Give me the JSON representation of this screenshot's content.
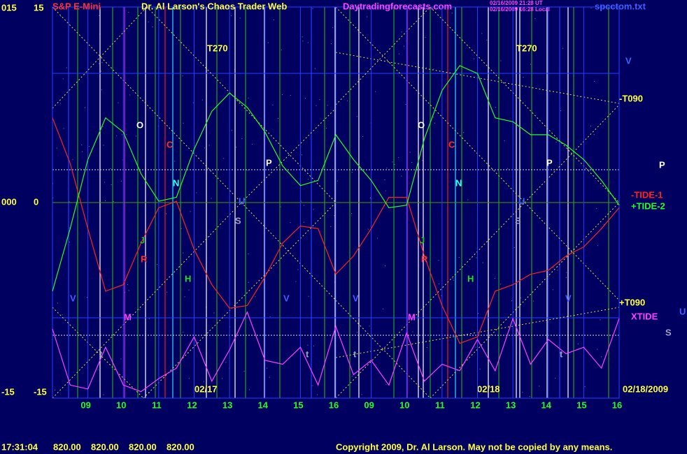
{
  "chart_data": {
    "type": "line",
    "title": "Dr. Al Larson's Chaos Trader Web",
    "instrument": "S&P E-Mini",
    "website": "Daytradingforecasts.com",
    "timestamps": [
      "02/16/2009 21:28 UT",
      "02/16/2009 16:28 Local"
    ],
    "file": "spcctom.txt",
    "ylim": [
      -15,
      15
    ],
    "yticks": [
      15,
      0,
      -15
    ],
    "yticks_left": [
      {
        "value": 15,
        "label": "015"
      },
      {
        "value": 0,
        "label": "000"
      },
      -15
    ],
    "xlim": [
      0,
      16
    ],
    "xticks": [
      {
        "value": 1,
        "label": "09"
      },
      {
        "value": 2,
        "label": "10"
      },
      {
        "value": 3,
        "label": "11"
      },
      {
        "value": 4,
        "label": "12"
      },
      {
        "value": 5,
        "label": "13"
      },
      {
        "value": 6,
        "label": "14"
      },
      {
        "value": 7,
        "label": "15"
      },
      {
        "value": 8,
        "label": "16"
      },
      {
        "value": 9,
        "label": "09"
      },
      {
        "value": 10,
        "label": "10"
      },
      {
        "value": 11,
        "label": "11"
      },
      {
        "value": 12,
        "label": "12"
      },
      {
        "value": 13,
        "label": "13"
      },
      {
        "value": 14,
        "label": "14"
      },
      {
        "value": 15,
        "label": "15"
      },
      {
        "value": 16,
        "label": "16"
      }
    ],
    "date_labels": [
      "02/17",
      "02/18",
      "02/18/2009"
    ],
    "x": [
      0,
      0.5,
      1,
      1.5,
      2,
      2.5,
      3,
      3.5,
      4,
      4.5,
      5,
      5.5,
      6,
      6.5,
      7,
      7.5,
      8,
      8.5,
      9,
      9.5,
      10,
      10.5,
      11,
      11.5,
      12,
      12.5,
      13,
      13.5,
      14,
      14.5,
      15,
      15.5,
      16
    ],
    "series": [
      {
        "name": "-TIDE-1",
        "color": "#ff2020",
        "values": [
          6.5,
          3.0,
          -2.0,
          -6.8,
          -6.3,
          -3.1,
          -0.4,
          0.1,
          -3.6,
          -6.3,
          -8.1,
          -7.9,
          -5.7,
          -3.1,
          -1.8,
          -2.0,
          -5.5,
          -4.1,
          -2.0,
          0.4,
          0.4,
          -4.1,
          -7.9,
          -10.8,
          -10.3,
          -6.8,
          -6.3,
          -5.5,
          -5.2,
          -4.1,
          -3.4,
          -2.0,
          -0.4
        ]
      },
      {
        "name": "+TIDE-2",
        "color": "#20ff20",
        "values": [
          -6.8,
          -2.0,
          3.3,
          6.5,
          5.4,
          2.2,
          0.1,
          0.4,
          4.1,
          7.0,
          8.4,
          7.3,
          5.4,
          2.8,
          1.3,
          1.7,
          5.2,
          3.3,
          1.7,
          -0.4,
          -0.2,
          4.9,
          8.6,
          10.5,
          9.9,
          6.5,
          6.2,
          5.2,
          5.2,
          4.4,
          3.3,
          1.7,
          -0.2
        ]
      },
      {
        "name": "XTIDE",
        "color": "#ff40ff",
        "values": [
          -9.7,
          -14.0,
          -14.3,
          -11.1,
          -14.0,
          -14.5,
          -13.5,
          -12.7,
          -10.3,
          -13.7,
          -11.3,
          -8.4,
          -12.1,
          -12.4,
          -11.1,
          -14.0,
          -9.5,
          -13.2,
          -12.1,
          -14.0,
          -10.0,
          -13.7,
          -12.4,
          -12.9,
          -10.5,
          -12.9,
          -8.9,
          -12.4,
          -10.5,
          -11.6,
          -11.1,
          -12.7,
          -8.9
        ]
      }
    ],
    "trend_labels": [
      "-T090",
      "+T090"
    ],
    "annotations": [
      {
        "text": "T270",
        "color": "#ffff40"
      },
      {
        "text": "T270",
        "color": "#ffff40"
      },
      {
        "text": "O",
        "color": "#ffffff"
      },
      {
        "text": "O",
        "color": "#ffffff"
      },
      {
        "text": "C",
        "color": "#ff3030"
      },
      {
        "text": "C",
        "color": "#ff3030"
      },
      {
        "text": "P",
        "color": "#ffffff"
      },
      {
        "text": "P",
        "color": "#ffffff"
      },
      {
        "text": "P",
        "color": "#ffffff"
      },
      {
        "text": "N",
        "color": "#40ffff"
      },
      {
        "text": "N",
        "color": "#40ffff"
      },
      {
        "text": "U",
        "color": "#4060ff"
      },
      {
        "text": "U",
        "color": "#4060ff"
      },
      {
        "text": "S",
        "color": "#a0a0c0"
      },
      {
        "text": "S",
        "color": "#a0a0c0"
      },
      {
        "text": "J",
        "color": "#20c020"
      },
      {
        "text": "J",
        "color": "#20c020"
      },
      {
        "text": "R",
        "color": "#ff3030"
      },
      {
        "text": "R",
        "color": "#ff3030"
      },
      {
        "text": "H",
        "color": "#20e020"
      },
      {
        "text": "H",
        "color": "#20e020"
      },
      {
        "text": "V",
        "color": "#4060ff"
      },
      {
        "text": "V",
        "color": "#4060ff"
      },
      {
        "text": "V",
        "color": "#4060ff"
      },
      {
        "text": "V",
        "color": "#4060ff"
      },
      {
        "text": "V",
        "color": "#4060ff"
      },
      {
        "text": "M",
        "color": "#ff40ff"
      },
      {
        "text": "M",
        "color": "#ff40ff"
      },
      {
        "text": "t",
        "color": "#a0a0c0"
      },
      {
        "text": "t",
        "color": "#a0a0c0"
      },
      {
        "text": "t",
        "color": "#a0a0c0"
      },
      {
        "text": "t",
        "color": "#a0a0c0"
      },
      {
        "text": "U",
        "color": "#4060ff"
      },
      {
        "text": "S",
        "color": "#a0a0c0"
      }
    ],
    "status": {
      "time": "17:31:04",
      "prices": [
        "820.00",
        "820.00",
        "820.00",
        "820.00"
      ]
    },
    "copyright": "Copyright 2009, Dr. Al Larson. May not be copied by any means."
  }
}
